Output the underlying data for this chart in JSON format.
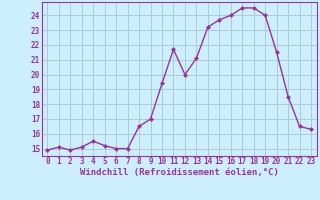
{
  "x": [
    0,
    1,
    2,
    3,
    4,
    5,
    6,
    7,
    8,
    9,
    10,
    11,
    12,
    13,
    14,
    15,
    16,
    17,
    18,
    19,
    20,
    21,
    22,
    23
  ],
  "y": [
    14.9,
    15.1,
    14.9,
    15.1,
    15.5,
    15.2,
    15.0,
    15.0,
    16.5,
    17.0,
    19.4,
    21.7,
    20.0,
    21.1,
    23.2,
    23.7,
    24.0,
    24.5,
    24.5,
    24.0,
    21.5,
    18.5,
    16.5,
    16.3
  ],
  "line_color": "#993399",
  "marker": "D",
  "markersize": 2,
  "linewidth": 1.0,
  "xlabel": "Windchill (Refroidissement éolien,°C)",
  "yticks": [
    15,
    16,
    17,
    18,
    19,
    20,
    21,
    22,
    23,
    24
  ],
  "ylim": [
    14.5,
    24.9
  ],
  "xlim": [
    -0.5,
    23.5
  ],
  "bg_color": "#cceeff",
  "grid_color": "#aacccc",
  "tick_fontsize": 5.5,
  "xlabel_fontsize": 6.5
}
